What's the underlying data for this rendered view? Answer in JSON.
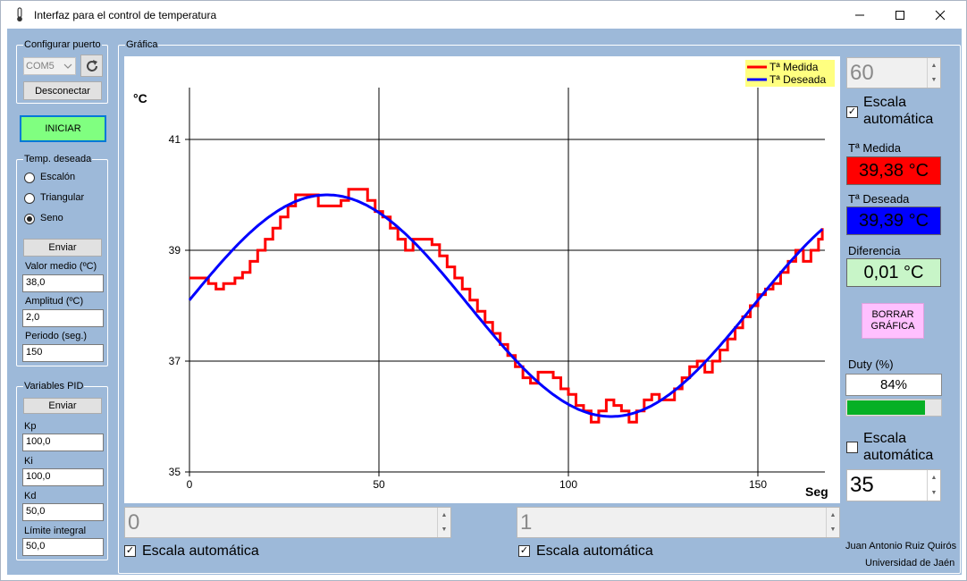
{
  "window": {
    "title": "Interfaz para el control de temperatura"
  },
  "port": {
    "group_label": "Configurar puerto",
    "selected": "COM5",
    "disconnect_label": "Desconectar"
  },
  "start_label": "INICIAR",
  "temp": {
    "group_label": "Temp. deseada",
    "options": [
      "Escalón",
      "Triangular",
      "Seno"
    ],
    "selected": "Seno",
    "send_label": "Enviar",
    "mean_label": "Valor medio (ºC)",
    "mean_value": "38,0",
    "amp_label": "Amplitud (ºC)",
    "amp_value": "2,0",
    "period_label": "Periodo (seg.)",
    "period_value": "150"
  },
  "pid": {
    "group_label": "Variables PID",
    "send_label": "Enviar",
    "kp_label": "Kp",
    "kp_value": "100,0",
    "ki_label": "Ki",
    "ki_value": "100,0",
    "kd_label": "Kd",
    "kd_value": "50,0",
    "limit_label": "Límite integral",
    "limit_value": "50,0"
  },
  "chart_group_label": "Gráfica",
  "right": {
    "ymax_value": "60",
    "autoscale_top_label": "Escala automática",
    "autoscale_top_checked": true,
    "measured_label": "Tª Medida",
    "measured_value": "39,38 °C",
    "desired_label": "Tª Deseada",
    "desired_value": "39,39 °C",
    "diff_label": "Diferencia",
    "diff_value": "0,01 °C",
    "clear_label": "BORRAR GRÁFICA",
    "duty_label": "Duty (%)",
    "duty_value": "84%",
    "duty_fraction": 0.84,
    "autoscale_bottom_label": "Escala automática",
    "autoscale_bottom_checked": false,
    "ymin_value": "35"
  },
  "bottom": {
    "xmin_value": "0",
    "xmin_autoscale_label": "Escala automática",
    "xmax_value": "1",
    "xmax_autoscale_label": "Escala automática"
  },
  "credits": {
    "author": "Juan Antonio Ruiz Quirós",
    "university": "Universidad de Jaén"
  },
  "colors": {
    "client_bg": "#9db9d9",
    "measured": "#ff0000",
    "desired": "#0000ff",
    "difference": "#c8f5c8",
    "start": "#80ff80",
    "clear": "#ffc0ff",
    "duty_bar": "#06b025",
    "legend_bg": "#ffff80"
  },
  "chart_data": {
    "type": "line",
    "ylabel": "°C",
    "xlabel": "Seg",
    "xlim": [
      0,
      166
    ],
    "ylim": [
      35,
      42
    ],
    "x_ticks": [
      0,
      50,
      100,
      150
    ],
    "y_ticks": [
      35,
      37,
      39,
      41
    ],
    "grid": true,
    "legend_position": "top-right",
    "series": [
      {
        "name": "Tª Medida",
        "color": "#ff0000",
        "step": true,
        "points": [
          [
            0,
            38.5
          ],
          [
            5,
            38.4
          ],
          [
            7,
            38.3
          ],
          [
            9,
            38.4
          ],
          [
            12,
            38.5
          ],
          [
            14,
            38.6
          ],
          [
            16,
            38.8
          ],
          [
            18,
            39.0
          ],
          [
            20,
            39.2
          ],
          [
            22,
            39.4
          ],
          [
            24,
            39.6
          ],
          [
            26,
            39.8
          ],
          [
            28,
            40.0
          ],
          [
            31,
            40.0
          ],
          [
            34,
            39.8
          ],
          [
            38,
            39.8
          ],
          [
            40,
            39.9
          ],
          [
            42,
            40.1
          ],
          [
            45,
            40.1
          ],
          [
            47,
            39.9
          ],
          [
            49,
            39.7
          ],
          [
            51,
            39.6
          ],
          [
            53,
            39.4
          ],
          [
            55,
            39.2
          ],
          [
            57,
            39.0
          ],
          [
            59,
            39.2
          ],
          [
            62,
            39.2
          ],
          [
            64,
            39.1
          ],
          [
            66,
            38.9
          ],
          [
            68,
            38.7
          ],
          [
            70,
            38.5
          ],
          [
            72,
            38.3
          ],
          [
            74,
            38.1
          ],
          [
            76,
            37.9
          ],
          [
            78,
            37.7
          ],
          [
            80,
            37.5
          ],
          [
            82,
            37.3
          ],
          [
            84,
            37.1
          ],
          [
            86,
            36.9
          ],
          [
            88,
            36.7
          ],
          [
            90,
            36.6
          ],
          [
            92,
            36.8
          ],
          [
            96,
            36.7
          ],
          [
            98,
            36.5
          ],
          [
            100,
            36.4
          ],
          [
            102,
            36.2
          ],
          [
            104,
            36.1
          ],
          [
            106,
            35.9
          ],
          [
            108,
            36.1
          ],
          [
            110,
            36.3
          ],
          [
            112,
            36.2
          ],
          [
            114,
            36.1
          ],
          [
            116,
            35.9
          ],
          [
            118,
            36.1
          ],
          [
            120,
            36.3
          ],
          [
            122,
            36.4
          ],
          [
            124,
            36.3
          ],
          [
            126,
            36.3
          ],
          [
            128,
            36.5
          ],
          [
            130,
            36.7
          ],
          [
            132,
            36.9
          ],
          [
            134,
            37.0
          ],
          [
            136,
            36.8
          ],
          [
            138,
            37.0
          ],
          [
            140,
            37.2
          ],
          [
            142,
            37.4
          ],
          [
            144,
            37.6
          ],
          [
            146,
            37.8
          ],
          [
            148,
            38.0
          ],
          [
            150,
            38.2
          ],
          [
            152,
            38.3
          ],
          [
            154,
            38.4
          ],
          [
            156,
            38.6
          ],
          [
            158,
            38.8
          ],
          [
            160,
            39.0
          ],
          [
            162,
            38.8
          ],
          [
            164,
            39.0
          ],
          [
            166,
            39.2
          ],
          [
            167,
            39.4
          ]
        ]
      },
      {
        "name": "Tª Deseada",
        "color": "#0000ff",
        "function": "sine",
        "mean": 38.0,
        "amplitude": 2.0,
        "period": 150,
        "phase_x": 0,
        "x_start": 0,
        "x_end": 167,
        "start_value": 38.1
      }
    ]
  }
}
